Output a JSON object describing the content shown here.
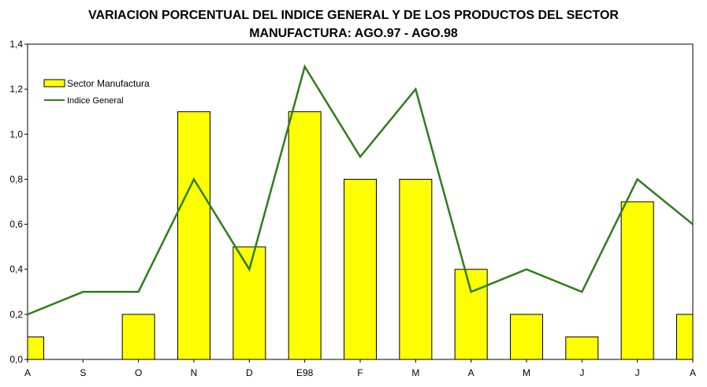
{
  "chart_data": {
    "type": "bar",
    "title": "VARIACION PORCENTUAL DEL INDICE GENERAL Y DE LOS PRODUCTOS DEL SECTOR",
    "subtitle": "MANUFACTURA: AGO.97 - AGO.98",
    "categories": [
      "A",
      "S",
      "O",
      "N",
      "D",
      "E98",
      "F",
      "M",
      "A",
      "M",
      "J",
      "J",
      "A"
    ],
    "ylim": [
      0,
      1.4
    ],
    "yticks": [
      "0,0",
      "0,2",
      "0,4",
      "0,6",
      "0,8",
      "1,0",
      "1,2",
      "1,4"
    ],
    "grid": false,
    "legend_position": "top-left",
    "series": [
      {
        "name": "Sector Manufactura",
        "kind": "bar",
        "color": "#ffff00",
        "values": [
          0.1,
          0,
          0.2,
          1.1,
          0.5,
          1.1,
          0.8,
          0.8,
          0.4,
          0.2,
          0.1,
          0.7,
          0.2
        ]
      },
      {
        "name": "Indice General",
        "kind": "line",
        "color": "#2e7d1c",
        "values": [
          0.2,
          0.3,
          0.3,
          0.8,
          0.4,
          1.3,
          0.9,
          1.2,
          0.3,
          0.4,
          0.3,
          0.8,
          0.6
        ]
      }
    ]
  }
}
